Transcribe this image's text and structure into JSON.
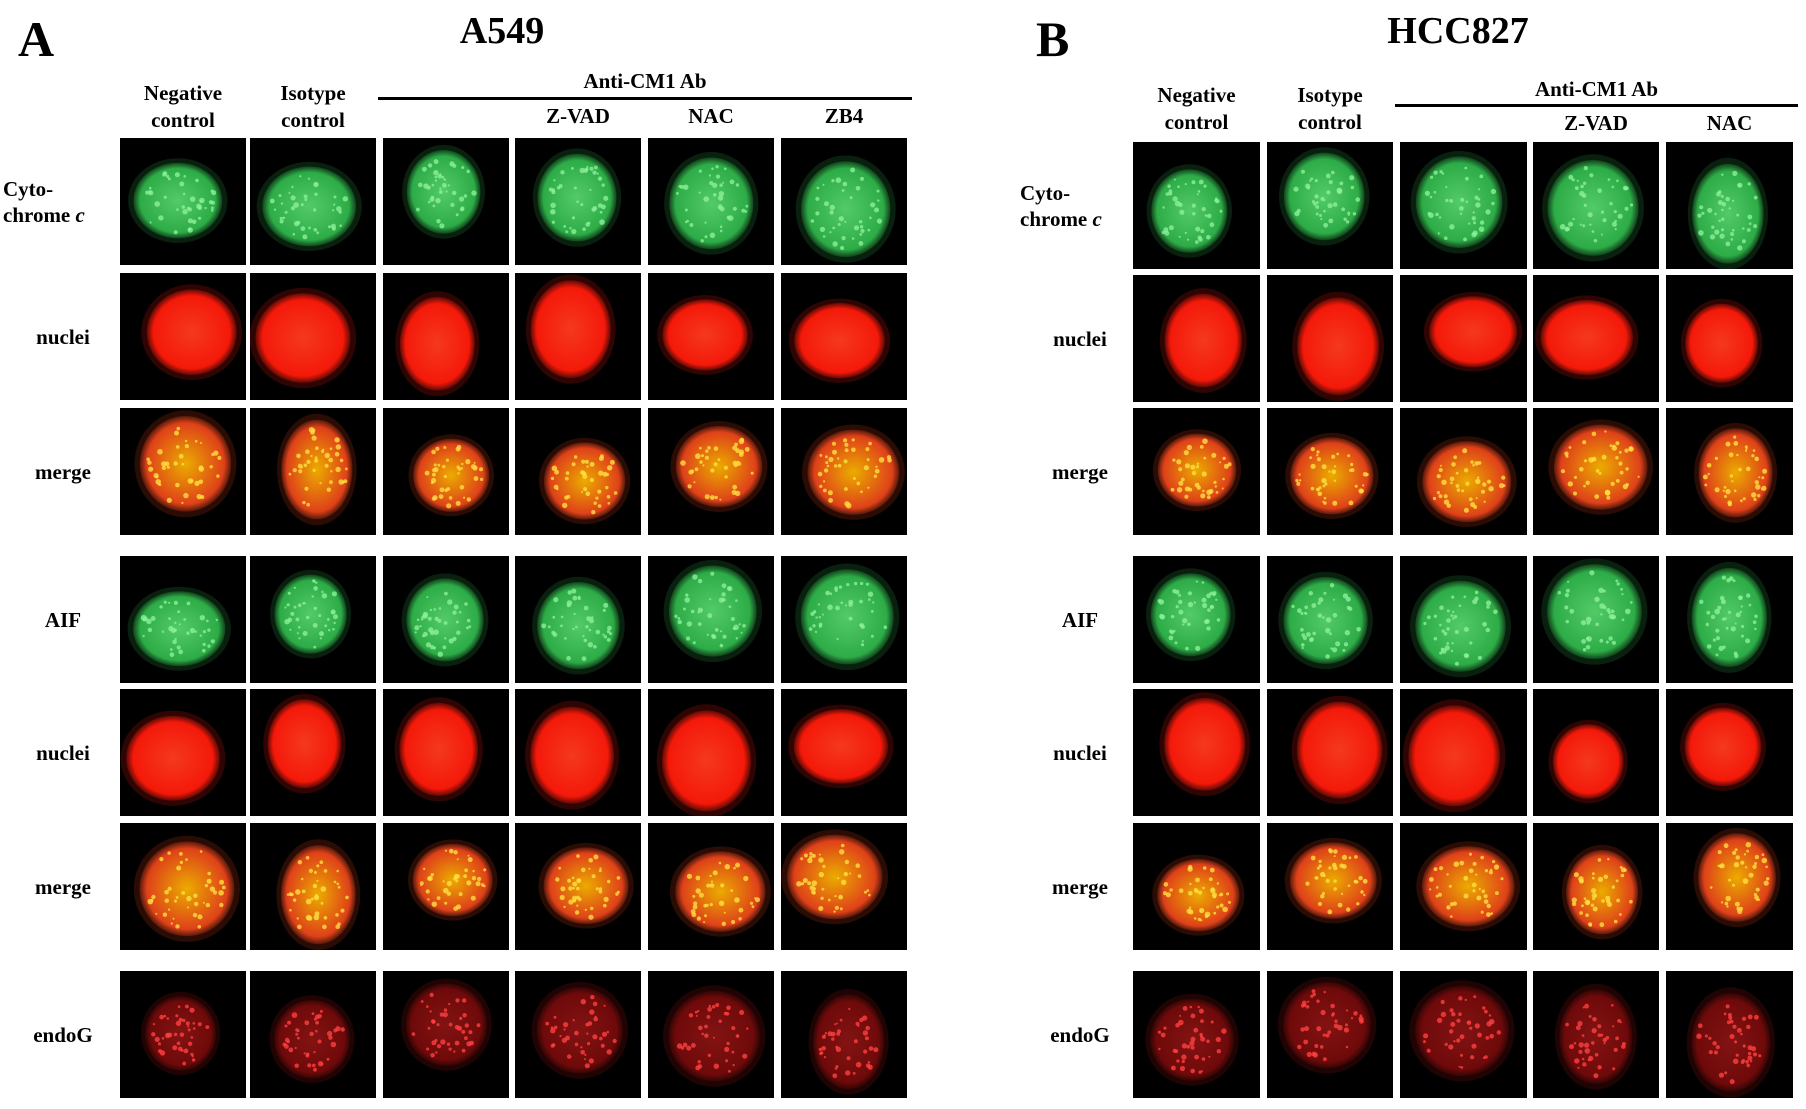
{
  "panels": [
    {
      "letter": "A",
      "title": "A549",
      "columns": [
        "Negative\ncontrol",
        "Isotype\ncontrol",
        "",
        "Z-VAD",
        "NAC",
        "ZB4"
      ],
      "group_label": "Anti-CM1 Ab",
      "rows": [
        "Cyto-\nchrome c",
        "nuclei",
        "merge",
        "AIF",
        "nuclei",
        "merge",
        "endoG"
      ]
    },
    {
      "letter": "B",
      "title": "HCC827",
      "columns": [
        "Negative\ncontrol",
        "Isotype\ncontrol",
        "",
        "Z-VAD",
        "NAC"
      ],
      "group_label": "Anti-CM1 Ab",
      "rows": [
        "Cyto-\nchrome c",
        "nuclei",
        "merge",
        "AIF",
        "nuclei",
        "merge",
        "endoG"
      ]
    }
  ],
  "colors": {
    "background": "#000000",
    "green_stain": "#2fb34a",
    "red_stain": "#ff1a0a",
    "merge_yellow": "#f5b400"
  }
}
